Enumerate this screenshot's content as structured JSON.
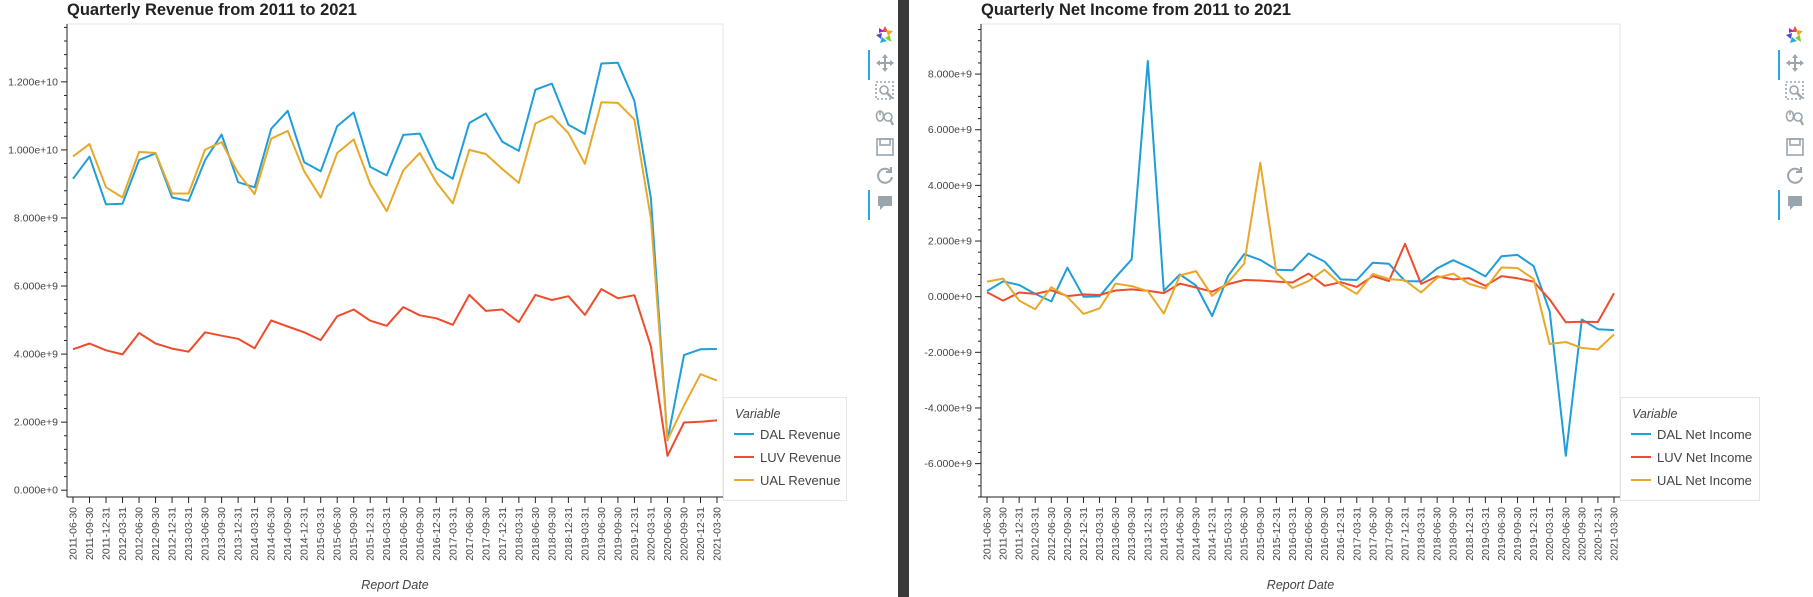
{
  "charts": [
    {
      "id": "left",
      "title": "Quarterly Revenue from 2011 to 2021",
      "xlabel": "Report Date",
      "ylim": [
        -200000000,
        13700000000
      ],
      "yticks": [
        0,
        2000000000,
        4000000000,
        6000000000,
        8000000000,
        10000000000,
        12000000000
      ],
      "ytick_labels": [
        "0.000e+0",
        "2.000e+9",
        "4.000e+9",
        "6.000e+9",
        "8.000e+9",
        "1.000e+10",
        "1.200e+10"
      ],
      "legend": {
        "title": "Variable"
      }
    },
    {
      "id": "right",
      "title": "Quarterly Net Income from 2011 to 2021",
      "xlabel": "Report Date",
      "ylim": [
        -7200000000,
        9800000000
      ],
      "yticks": [
        -6000000000,
        -4000000000,
        -2000000000,
        0,
        2000000000,
        4000000000,
        6000000000,
        8000000000
      ],
      "ytick_labels": [
        "-6.000e+9",
        "-4.000e+9",
        "-2.000e+9",
        "0.000e+0",
        "2.000e+9",
        "4.000e+9",
        "6.000e+9",
        "8.000e+9"
      ],
      "legend": {
        "title": "Variable"
      }
    }
  ],
  "chart_data": [
    {
      "type": "line",
      "title": "Quarterly Revenue from 2011 to 2021",
      "xlabel": "Report Date",
      "ylabel": "",
      "ylim": [
        -200000000,
        13700000000
      ],
      "grid": false,
      "legend_position": "right",
      "x": [
        "2011-06-30",
        "2011-09-30",
        "2011-12-31",
        "2012-03-31",
        "2012-06-30",
        "2012-09-30",
        "2012-12-31",
        "2013-03-31",
        "2013-06-30",
        "2013-09-30",
        "2013-12-31",
        "2014-03-31",
        "2014-06-30",
        "2014-09-30",
        "2014-12-31",
        "2015-03-31",
        "2015-06-30",
        "2015-09-30",
        "2015-12-31",
        "2016-03-31",
        "2016-06-30",
        "2016-09-30",
        "2016-12-31",
        "2017-03-31",
        "2017-06-30",
        "2017-09-30",
        "2017-12-31",
        "2018-03-31",
        "2018-06-30",
        "2018-09-30",
        "2018-12-31",
        "2019-03-31",
        "2019-06-30",
        "2019-09-30",
        "2019-12-31",
        "2020-03-31",
        "2020-06-30",
        "2020-09-30",
        "2020-12-31",
        "2021-03-30"
      ],
      "series": [
        {
          "name": "DAL Revenue",
          "color": "#1f9ed8",
          "values": [
            9150000000,
            9800000000,
            8400000000,
            8420000000,
            9700000000,
            9900000000,
            8600000000,
            8500000000,
            9700000000,
            10450000000,
            9050000000,
            8900000000,
            10620000000,
            11150000000,
            9640000000,
            9370000000,
            10700000000,
            11100000000,
            9500000000,
            9250000000,
            10440000000,
            10480000000,
            9460000000,
            9150000000,
            10790000000,
            11070000000,
            10240000000,
            9970000000,
            11770000000,
            11950000000,
            10740000000,
            10470000000,
            12540000000,
            12560000000,
            11440000000,
            8580000000,
            1470000000,
            3970000000,
            4140000000,
            4150000000
          ]
        },
        {
          "name": "LUV Revenue",
          "color": "#ee4c2c",
          "values": [
            4140000000,
            4310000000,
            4110000000,
            3990000000,
            4620000000,
            4310000000,
            4160000000,
            4070000000,
            4640000000,
            4540000000,
            4450000000,
            4170000000,
            4990000000,
            4810000000,
            4640000000,
            4410000000,
            5110000000,
            5310000000,
            4980000000,
            4830000000,
            5380000000,
            5140000000,
            5050000000,
            4860000000,
            5740000000,
            5270000000,
            5310000000,
            4940000000,
            5740000000,
            5590000000,
            5700000000,
            5150000000,
            5910000000,
            5640000000,
            5730000000,
            4230000000,
            1010000000,
            1990000000,
            2010000000,
            2050000000
          ]
        },
        {
          "name": "UAL Revenue",
          "color": "#e8a82a",
          "values": [
            9810000000,
            10170000000,
            8900000000,
            8600000000,
            9940000000,
            9910000000,
            8720000000,
            8720000000,
            10010000000,
            10230000000,
            9320000000,
            8700000000,
            10330000000,
            10560000000,
            9370000000,
            8600000000,
            9910000000,
            10310000000,
            9000000000,
            8200000000,
            9400000000,
            9910000000,
            9050000000,
            8430000000,
            10000000000,
            9880000000,
            9440000000,
            9030000000,
            10780000000,
            11000000000,
            10490000000,
            9590000000,
            11400000000,
            11380000000,
            10890000000,
            7980000000,
            1480000000,
            2490000000,
            3410000000,
            3220000000
          ]
        }
      ]
    },
    {
      "type": "line",
      "title": "Quarterly Net Income from 2011 to 2021",
      "xlabel": "Report Date",
      "ylabel": "",
      "ylim": [
        -7200000000,
        9800000000
      ],
      "grid": false,
      "legend_position": "right",
      "x": [
        "2011-06-30",
        "2011-09-30",
        "2011-12-31",
        "2012-03-31",
        "2012-06-30",
        "2012-09-30",
        "2012-12-31",
        "2013-03-31",
        "2013-06-30",
        "2013-09-30",
        "2013-12-31",
        "2014-03-31",
        "2014-06-30",
        "2014-09-30",
        "2014-12-31",
        "2015-03-31",
        "2015-06-30",
        "2015-09-30",
        "2015-12-31",
        "2016-03-31",
        "2016-06-30",
        "2016-09-30",
        "2016-12-31",
        "2017-03-31",
        "2017-06-30",
        "2017-09-30",
        "2017-12-31",
        "2018-03-31",
        "2018-06-30",
        "2018-09-30",
        "2018-12-31",
        "2019-03-31",
        "2019-06-30",
        "2019-09-30",
        "2019-12-31",
        "2020-03-31",
        "2020-06-30",
        "2020-09-30",
        "2020-12-31",
        "2021-03-30"
      ],
      "series": [
        {
          "name": "DAL Net Income",
          "color": "#1f9ed8",
          "values": [
            200000000,
            550000000,
            420000000,
            100000000,
            -170000000,
            1040000000,
            0,
            10000000,
            700000000,
            1340000000,
            8470000000,
            210000000,
            800000000,
            400000000,
            -700000000,
            750000000,
            1530000000,
            1320000000,
            970000000,
            950000000,
            1550000000,
            1260000000,
            620000000,
            600000000,
            1220000000,
            1180000000,
            560000000,
            550000000,
            1020000000,
            1310000000,
            1050000000,
            730000000,
            1450000000,
            1500000000,
            1100000000,
            -530000000,
            -5720000000,
            -820000000,
            -1170000000,
            -1200000000
          ]
        },
        {
          "name": "LUV Net Income",
          "color": "#ee4c2c",
          "values": [
            160000000,
            -140000000,
            150000000,
            100000000,
            230000000,
            20000000,
            80000000,
            60000000,
            220000000,
            260000000,
            210000000,
            130000000,
            470000000,
            330000000,
            180000000,
            450000000,
            600000000,
            580000000,
            540000000,
            510000000,
            830000000,
            390000000,
            520000000,
            350000000,
            740000000,
            560000000,
            1900000000,
            460000000,
            730000000,
            620000000,
            660000000,
            390000000,
            740000000,
            660000000,
            540000000,
            -100000000,
            -920000000,
            -900000000,
            -910000000,
            120000000
          ]
        },
        {
          "name": "UAL Net Income",
          "color": "#e8a82a",
          "values": [
            540000000,
            650000000,
            -140000000,
            -450000000,
            340000000,
            -10000000,
            -620000000,
            -420000000,
            470000000,
            380000000,
            200000000,
            -610000000,
            760000000,
            920000000,
            30000000,
            520000000,
            1190000000,
            4810000000,
            850000000,
            310000000,
            560000000,
            970000000,
            440000000,
            100000000,
            820000000,
            630000000,
            590000000,
            150000000,
            680000000,
            830000000,
            460000000,
            290000000,
            1050000000,
            1030000000,
            640000000,
            -1700000000,
            -1630000000,
            -1840000000,
            -1900000000,
            -1360000000
          ]
        }
      ]
    }
  ]
}
